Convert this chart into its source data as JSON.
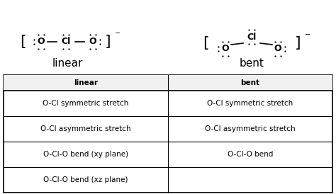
{
  "linear_label": "linear",
  "bent_label": "bent",
  "table_headers": [
    "linear",
    "bent"
  ],
  "table_rows": [
    [
      "O-Cl symmetric stretch",
      "O-Cl symmetric stretch"
    ],
    [
      "O-Cl asymmetric stretch",
      "O-Cl asymmetric stretch"
    ],
    [
      "O-Cl-O bend (xy plane)",
      "O-Cl-O bend"
    ],
    [
      "O-Cl-O bend (xz plane)",
      ""
    ]
  ],
  "bg_color": "#ffffff",
  "text_color": "#000000",
  "font_size_label": 11,
  "font_size_table": 7.5,
  "font_size_atom": 9,
  "font_size_bracket": 16,
  "dot_size": 1.6
}
